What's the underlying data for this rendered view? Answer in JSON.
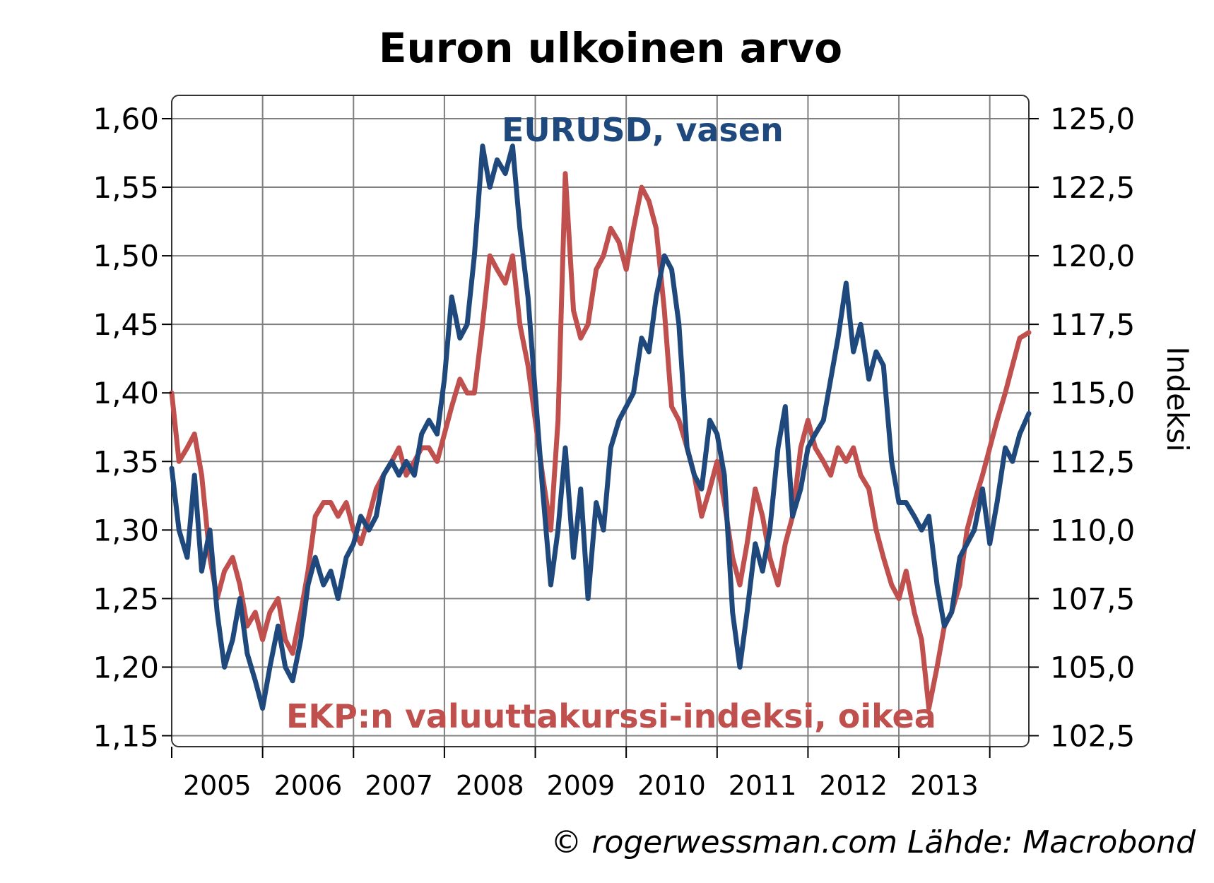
{
  "chart_data": {
    "type": "line",
    "title": "Euron ulkoinen arvo",
    "source": "© rogerwessman.com Lähde: Macrobond",
    "x_ticks": [
      "2005",
      "2006",
      "2007",
      "2008",
      "2009",
      "2010",
      "2011",
      "2012",
      "2013"
    ],
    "x_range": [
      2004.0,
      2013.43
    ],
    "y_left": {
      "ticks": [
        "1,60",
        "1,55",
        "1,50",
        "1,45",
        "1,40",
        "1,35",
        "1,30",
        "1,25",
        "1,20",
        "1,15"
      ],
      "ylim": [
        1.142,
        1.617
      ],
      "label": ""
    },
    "y_right": {
      "ticks": [
        "125,0",
        "122,5",
        "120,0",
        "117,5",
        "115,0",
        "112,5",
        "110,0",
        "107,5",
        "105,0",
        "102,5"
      ],
      "ylim": [
        102.1,
        125.85
      ],
      "label": "Indeksi"
    },
    "grid": true,
    "series": [
      {
        "name": "EURUSD, vasen",
        "axis": "left",
        "color": "#1f497d",
        "x": [
          2004.0,
          2004.08,
          2004.17,
          2004.25,
          2004.33,
          2004.42,
          2004.5,
          2004.58,
          2004.67,
          2004.75,
          2004.83,
          2004.92,
          2005.0,
          2005.08,
          2005.17,
          2005.25,
          2005.33,
          2005.42,
          2005.5,
          2005.58,
          2005.67,
          2005.75,
          2005.83,
          2005.92,
          2006.0,
          2006.08,
          2006.17,
          2006.25,
          2006.33,
          2006.42,
          2006.5,
          2006.58,
          2006.67,
          2006.75,
          2006.83,
          2006.92,
          2007.0,
          2007.08,
          2007.17,
          2007.25,
          2007.33,
          2007.42,
          2007.5,
          2007.58,
          2007.67,
          2007.75,
          2007.83,
          2007.92,
          2008.0,
          2008.08,
          2008.17,
          2008.25,
          2008.33,
          2008.42,
          2008.5,
          2008.58,
          2008.67,
          2008.75,
          2008.83,
          2008.92,
          2009.0,
          2009.08,
          2009.17,
          2009.25,
          2009.33,
          2009.42,
          2009.5,
          2009.58,
          2009.67,
          2009.75,
          2009.83,
          2009.92,
          2010.0,
          2010.08,
          2010.17,
          2010.25,
          2010.33,
          2010.42,
          2010.5,
          2010.58,
          2010.67,
          2010.75,
          2010.83,
          2010.92,
          2011.0,
          2011.08,
          2011.17,
          2011.25,
          2011.33,
          2011.42,
          2011.5,
          2011.58,
          2011.67,
          2011.75,
          2011.83,
          2011.92,
          2012.0,
          2012.08,
          2012.17,
          2012.25,
          2012.33,
          2012.42,
          2012.5,
          2012.58,
          2012.67,
          2012.75,
          2012.83,
          2012.92,
          2013.0,
          2013.08,
          2013.17,
          2013.25,
          2013.33,
          2013.43
        ],
        "values": [
          1.345,
          1.3,
          1.28,
          1.34,
          1.27,
          1.3,
          1.24,
          1.2,
          1.22,
          1.25,
          1.21,
          1.19,
          1.17,
          1.2,
          1.23,
          1.2,
          1.19,
          1.22,
          1.26,
          1.28,
          1.26,
          1.27,
          1.25,
          1.28,
          1.29,
          1.31,
          1.3,
          1.31,
          1.34,
          1.35,
          1.34,
          1.35,
          1.34,
          1.37,
          1.38,
          1.37,
          1.41,
          1.47,
          1.44,
          1.45,
          1.5,
          1.58,
          1.55,
          1.57,
          1.56,
          1.58,
          1.52,
          1.47,
          1.4,
          1.33,
          1.26,
          1.3,
          1.36,
          1.28,
          1.33,
          1.25,
          1.32,
          1.3,
          1.36,
          1.38,
          1.39,
          1.4,
          1.44,
          1.43,
          1.47,
          1.5,
          1.49,
          1.45,
          1.36,
          1.34,
          1.33,
          1.38,
          1.37,
          1.34,
          1.24,
          1.2,
          1.24,
          1.29,
          1.27,
          1.3,
          1.36,
          1.39,
          1.31,
          1.33,
          1.36,
          1.37,
          1.38,
          1.41,
          1.44,
          1.48,
          1.43,
          1.45,
          1.41,
          1.43,
          1.42,
          1.35,
          1.32,
          1.32,
          1.31,
          1.3,
          1.31,
          1.26,
          1.23,
          1.24,
          1.28,
          1.29,
          1.3,
          1.33,
          1.29,
          1.32,
          1.36,
          1.35,
          1.37,
          1.385
        ]
      },
      {
        "name": "EKP:n valuuttakurssi-indeksi, oikea",
        "axis": "right",
        "color": "#c0504d",
        "x": [
          2004.0,
          2004.08,
          2004.17,
          2004.25,
          2004.33,
          2004.42,
          2004.5,
          2004.58,
          2004.67,
          2004.75,
          2004.83,
          2004.92,
          2005.0,
          2005.08,
          2005.17,
          2005.25,
          2005.33,
          2005.42,
          2005.5,
          2005.58,
          2005.67,
          2005.75,
          2005.83,
          2005.92,
          2006.0,
          2006.08,
          2006.17,
          2006.25,
          2006.33,
          2006.42,
          2006.5,
          2006.58,
          2006.67,
          2006.75,
          2006.83,
          2006.92,
          2007.0,
          2007.08,
          2007.17,
          2007.25,
          2007.33,
          2007.42,
          2007.5,
          2007.58,
          2007.67,
          2007.75,
          2007.83,
          2007.92,
          2008.0,
          2008.08,
          2008.17,
          2008.25,
          2008.33,
          2008.42,
          2008.5,
          2008.58,
          2008.67,
          2008.75,
          2008.83,
          2008.92,
          2009.0,
          2009.08,
          2009.17,
          2009.25,
          2009.33,
          2009.42,
          2009.5,
          2009.58,
          2009.67,
          2009.75,
          2009.83,
          2009.92,
          2010.0,
          2010.08,
          2010.17,
          2010.25,
          2010.33,
          2010.42,
          2010.5,
          2010.58,
          2010.67,
          2010.75,
          2010.83,
          2010.92,
          2011.0,
          2011.08,
          2011.17,
          2011.25,
          2011.33,
          2011.42,
          2011.5,
          2011.58,
          2011.67,
          2011.75,
          2011.83,
          2011.92,
          2012.0,
          2012.08,
          2012.17,
          2012.25,
          2012.33,
          2012.42,
          2012.5,
          2012.58,
          2012.67,
          2012.75,
          2012.83,
          2012.92,
          2013.0,
          2013.08,
          2013.17,
          2013.25,
          2013.33,
          2013.43
        ],
        "values": [
          115.0,
          112.5,
          113.0,
          113.5,
          112.0,
          109.0,
          107.5,
          108.5,
          109.0,
          108.0,
          106.5,
          107.0,
          106.0,
          107.0,
          107.5,
          106.0,
          105.5,
          107.0,
          108.5,
          110.5,
          111.0,
          111.0,
          110.5,
          111.0,
          110.0,
          109.5,
          110.5,
          111.5,
          112.0,
          112.5,
          113.0,
          112.0,
          112.5,
          113.0,
          113.0,
          112.5,
          113.5,
          114.5,
          115.5,
          115.0,
          115.0,
          117.5,
          120.0,
          119.5,
          119.0,
          120.0,
          117.5,
          116.0,
          114.0,
          112.0,
          110.0,
          114.0,
          123.0,
          118.0,
          117.0,
          117.5,
          119.5,
          120.0,
          121.0,
          120.5,
          119.5,
          121.0,
          122.5,
          122.0,
          121.0,
          118.0,
          114.5,
          114.0,
          113.0,
          112.0,
          110.5,
          111.5,
          112.5,
          111.0,
          109.0,
          108.0,
          109.5,
          111.5,
          110.5,
          109.0,
          108.0,
          109.5,
          110.5,
          113.0,
          114.0,
          113.0,
          112.5,
          112.0,
          113.0,
          112.5,
          113.0,
          112.0,
          111.5,
          110.0,
          109.0,
          108.0,
          107.5,
          108.5,
          107.0,
          106.0,
          103.5,
          105.0,
          106.5,
          107.0,
          108.0,
          110.0,
          111.0,
          112.0,
          113.0,
          114.0,
          115.0,
          116.0,
          117.0,
          117.2
        ]
      }
    ],
    "label_colors": {
      "eurusd": "#1f497d",
      "ekp": "#c0504d"
    }
  }
}
